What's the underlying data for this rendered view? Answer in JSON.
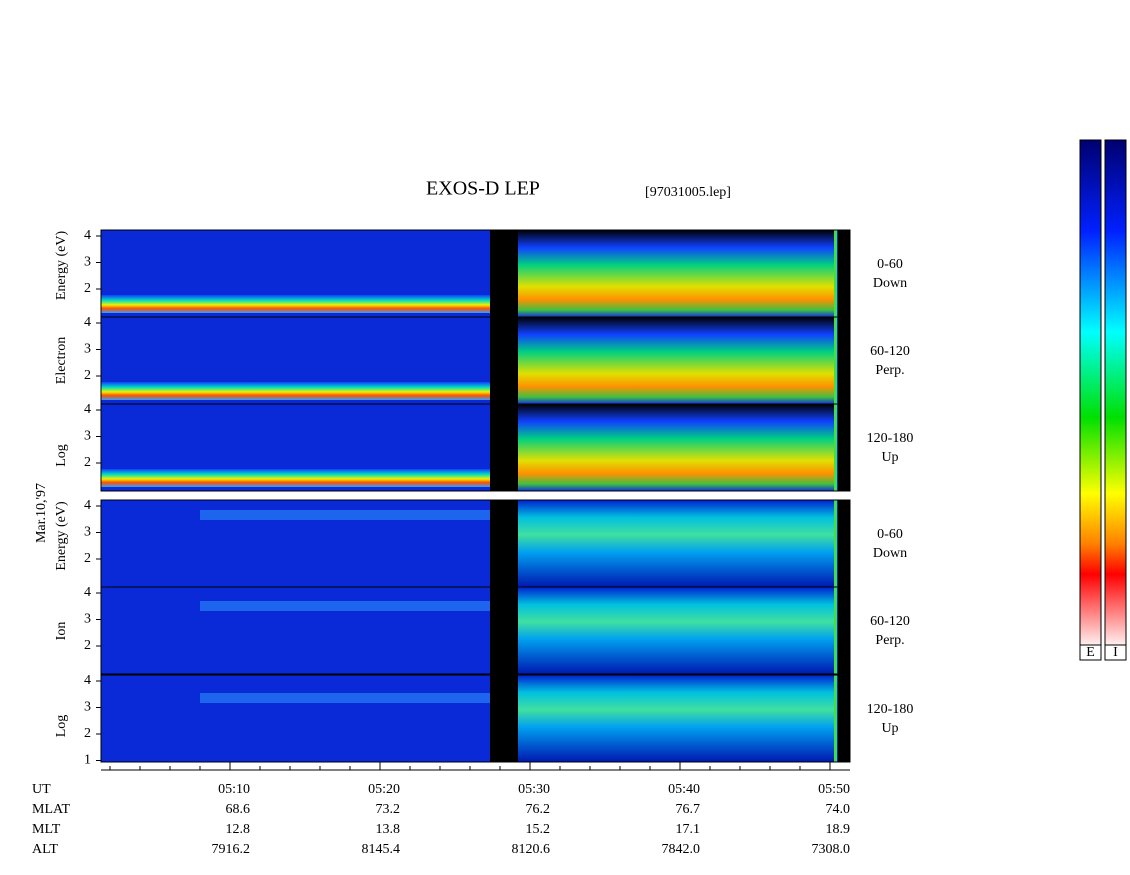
{
  "header": {
    "title": "EXOS-D LEP",
    "file": "[97031005.lep]",
    "date": "Mar.10,'97"
  },
  "electron": {
    "axis_label": [
      "Log",
      "Electron",
      "Energy (eV)"
    ],
    "panels": [
      {
        "range": "0-60",
        "direction": "Down",
        "yticks": [
          "4",
          "3",
          "2"
        ]
      },
      {
        "range": "60-120",
        "direction": "Perp.",
        "yticks": [
          "4",
          "3",
          "2"
        ]
      },
      {
        "range": "120-180",
        "direction": "Up",
        "yticks": [
          "4",
          "3",
          "2"
        ]
      }
    ]
  },
  "ion": {
    "axis_label": [
      "Log",
      "Ion",
      "Energy (eV)"
    ],
    "panels": [
      {
        "range": "0-60",
        "direction": "Down",
        "yticks": [
          "4",
          "3",
          "2"
        ]
      },
      {
        "range": "60-120",
        "direction": "Perp.",
        "yticks": [
          "4",
          "3",
          "2"
        ]
      },
      {
        "range": "120-180",
        "direction": "Up",
        "yticks": [
          "4",
          "3",
          "2",
          "1"
        ]
      }
    ]
  },
  "footer": {
    "rows": [
      {
        "label": "UT",
        "values": [
          "05:10",
          "05:20",
          "05:30",
          "05:40",
          "05:50"
        ]
      },
      {
        "label": "MLAT",
        "values": [
          "68.6",
          "73.2",
          "76.2",
          "76.7",
          "74.0"
        ]
      },
      {
        "label": "MLT",
        "values": [
          "12.8",
          "13.8",
          "15.2",
          "17.1",
          "18.9"
        ]
      },
      {
        "label": "ALT",
        "values": [
          "7916.2",
          "8145.4",
          "8120.6",
          "7842.0",
          "7308.0"
        ]
      }
    ]
  },
  "colorbar": {
    "labels": [
      "E",
      "I"
    ]
  }
}
